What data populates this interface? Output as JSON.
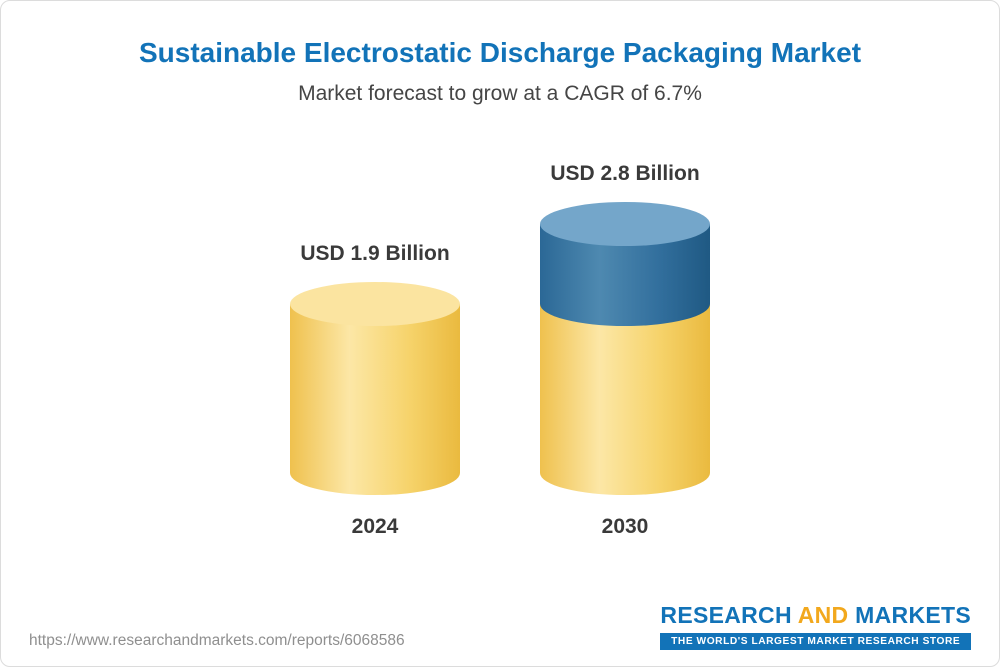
{
  "header": {
    "title": "Sustainable Electrostatic Discharge Packaging Market",
    "subtitle": "Market forecast to grow at a CAGR of 6.7%"
  },
  "chart_data": {
    "type": "bar",
    "variant": "3d-stacked-cylinder",
    "unit": "USD Billion",
    "categories": [
      "2024",
      "2030"
    ],
    "values": [
      1.9,
      2.8
    ],
    "value_labels": [
      "USD 1.9 Billion",
      "USD 2.8 Billion"
    ],
    "cagr": "6.7%",
    "title": "Sustainable Electrostatic Discharge Packaging Market",
    "subtitle": "Market forecast to grow at a CAGR of 6.7%",
    "xlabel": "",
    "ylabel": "",
    "ylim": [
      0,
      3
    ],
    "gridlines": false,
    "legend": false,
    "series": [
      {
        "name": "base-market",
        "values": [
          1.9,
          1.9
        ],
        "gradient": [
          "#efc14e",
          "#fce7a6",
          "#f6d36b",
          "#eaba3f"
        ],
        "cap_color": "#fbe4a0"
      },
      {
        "name": "growth-to-2030",
        "values": [
          0,
          0.9
        ],
        "gradient": [
          "#2b6896",
          "#4e89b0",
          "#326f9d",
          "#1f5983"
        ],
        "cap_color": "#74a6ca"
      }
    ]
  },
  "footer": {
    "url": "https://www.researchandmarkets.com/reports/6068586",
    "logo": {
      "research": "RESEARCH",
      "and": "AND",
      "markets": "MARKETS",
      "tagline": "THE WORLD'S LARGEST MARKET RESEARCH STORE"
    }
  },
  "colors": {
    "title_blue": "#1273b8",
    "logo_gold": "#f2a81d",
    "bar_yellow": "#f6d36b",
    "bar_blue": "#326f9d",
    "text_dark": "#3a3a3a",
    "url_gray": "#8f8f8f",
    "border_gray": "#dcdcdc"
  }
}
